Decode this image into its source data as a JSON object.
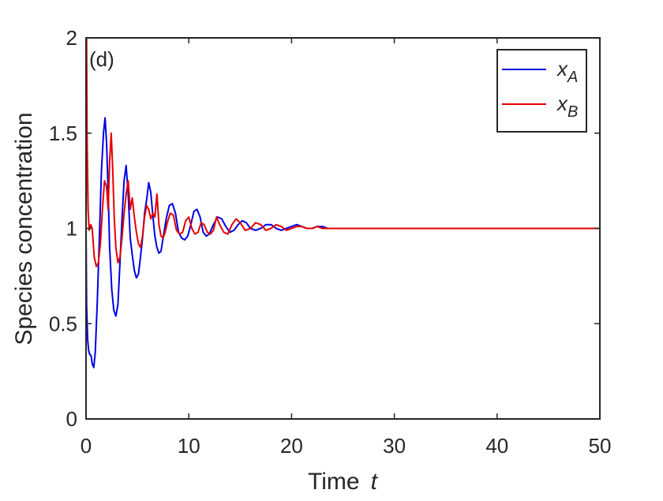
{
  "chart_data": {
    "type": "line",
    "panel_label": "(d)",
    "xlabel": "Time",
    "xlabel_var": "t",
    "ylabel": "Species concentration",
    "xlim": [
      0,
      50
    ],
    "ylim": [
      0,
      2
    ],
    "xticks": [
      0,
      10,
      20,
      30,
      40,
      50
    ],
    "xtick_labels": [
      "0",
      "10",
      "20",
      "30",
      "40",
      "50"
    ],
    "yticks": [
      0,
      0.5,
      1,
      1.5,
      2
    ],
    "ytick_labels": [
      "0",
      "0.5",
      "1",
      "1.5",
      "2"
    ],
    "grid": false,
    "legend_position": "top-right",
    "series": [
      {
        "name": "x",
        "name_subscript": "A",
        "color": "#0000e6",
        "x": [
          0.0,
          0.05,
          0.15,
          0.25,
          0.35,
          0.5,
          0.6,
          0.75,
          0.9,
          1.1,
          1.3,
          1.5,
          1.7,
          1.85,
          2.0,
          2.15,
          2.3,
          2.5,
          2.7,
          2.9,
          3.1,
          3.3,
          3.5,
          3.7,
          3.9,
          4.1,
          4.3,
          4.5,
          4.7,
          4.9,
          5.1,
          5.3,
          5.5,
          5.7,
          5.9,
          6.1,
          6.3,
          6.5,
          6.7,
          6.9,
          7.1,
          7.3,
          7.5,
          7.8,
          8.1,
          8.4,
          8.7,
          9.0,
          9.3,
          9.6,
          9.9,
          10.2,
          10.5,
          10.8,
          11.1,
          11.4,
          11.7,
          12.0,
          12.4,
          12.8,
          13.2,
          13.6,
          14.0,
          14.4,
          14.8,
          15.2,
          15.6,
          16.0,
          16.5,
          17.0,
          17.5,
          18.0,
          18.5,
          19.0,
          19.5,
          20.0,
          20.5,
          21.0,
          21.5,
          22.0,
          22.5,
          23.0,
          23.5,
          24.0,
          24.5,
          25.0,
          26.0,
          27.0,
          28.0,
          29.0,
          30.0,
          35.0,
          40.0,
          45.0,
          50.0
        ],
        "y": [
          1.0,
          0.6,
          0.42,
          0.36,
          0.34,
          0.33,
          0.29,
          0.27,
          0.35,
          0.62,
          0.95,
          1.3,
          1.5,
          1.58,
          1.45,
          1.2,
          0.9,
          0.68,
          0.57,
          0.54,
          0.6,
          0.82,
          1.05,
          1.25,
          1.33,
          1.18,
          0.95,
          0.86,
          0.78,
          0.74,
          0.76,
          0.85,
          0.95,
          1.08,
          1.15,
          1.24,
          1.19,
          1.07,
          0.96,
          0.9,
          0.87,
          0.88,
          0.95,
          1.05,
          1.12,
          1.13,
          1.08,
          0.98,
          0.95,
          0.94,
          0.96,
          1.02,
          1.09,
          1.1,
          1.06,
          0.98,
          0.96,
          0.97,
          1.02,
          1.06,
          1.05,
          1.01,
          0.98,
          0.99,
          1.02,
          1.04,
          1.03,
          1.0,
          0.99,
          1.0,
          1.02,
          1.02,
          1.0,
          0.99,
          1.0,
          1.01,
          1.02,
          1.01,
          1.0,
          1.0,
          1.01,
          1.01,
          1.0,
          1.0,
          1.0,
          1.0,
          1.0,
          1.0,
          1.0,
          1.0,
          1.0,
          1.0,
          1.0,
          1.0,
          1.0
        ]
      },
      {
        "name": "x",
        "name_subscript": "B",
        "color": "#e60000",
        "x": [
          0.0,
          0.05,
          0.1,
          0.2,
          0.3,
          0.45,
          0.6,
          0.8,
          1.0,
          1.2,
          1.4,
          1.6,
          1.8,
          2.0,
          2.15,
          2.3,
          2.45,
          2.6,
          2.75,
          2.9,
          3.1,
          3.3,
          3.5,
          3.7,
          3.9,
          4.1,
          4.3,
          4.5,
          4.7,
          4.9,
          5.1,
          5.3,
          5.5,
          5.7,
          5.9,
          6.1,
          6.3,
          6.5,
          6.7,
          6.9,
          7.1,
          7.3,
          7.5,
          7.7,
          7.9,
          8.2,
          8.5,
          8.8,
          9.1,
          9.4,
          9.7,
          10.0,
          10.3,
          10.6,
          10.9,
          11.2,
          11.5,
          11.8,
          12.1,
          12.4,
          12.7,
          13.0,
          13.4,
          13.8,
          14.2,
          14.6,
          15.0,
          15.5,
          16.0,
          16.5,
          17.0,
          17.5,
          18.0,
          18.5,
          19.0,
          19.5,
          20.0,
          20.5,
          21.0,
          21.5,
          22.0,
          22.5,
          23.0,
          24.0,
          25.0,
          26.0,
          27.0,
          28.0,
          30.0,
          35.0,
          40.0,
          45.0,
          50.0
        ],
        "y": [
          1.0,
          2.0,
          1.5,
          1.1,
          0.99,
          1.02,
          1.0,
          0.85,
          0.8,
          0.82,
          0.92,
          1.1,
          1.25,
          1.22,
          1.1,
          1.35,
          1.5,
          1.3,
          1.05,
          0.9,
          0.82,
          0.85,
          0.95,
          1.08,
          1.18,
          1.25,
          1.1,
          1.16,
          1.06,
          0.98,
          0.92,
          0.9,
          0.96,
          1.06,
          1.12,
          1.1,
          1.05,
          1.08,
          1.06,
          1.18,
          1.02,
          0.96,
          0.95,
          0.98,
          1.03,
          1.08,
          1.07,
          0.99,
          0.97,
          0.98,
          1.04,
          1.06,
          1.0,
          0.97,
          0.98,
          1.03,
          1.02,
          0.98,
          0.97,
          0.99,
          1.06,
          1.02,
          0.98,
          0.97,
          1.02,
          1.05,
          1.03,
          0.99,
          1.0,
          1.03,
          1.02,
          0.99,
          1.0,
          1.02,
          1.01,
          0.99,
          1.0,
          1.01,
          1.01,
          1.0,
          1.0,
          1.01,
          1.0,
          1.0,
          1.0,
          1.0,
          1.0,
          1.0,
          1.0,
          1.0,
          1.0,
          1.0,
          1.0
        ]
      }
    ]
  }
}
